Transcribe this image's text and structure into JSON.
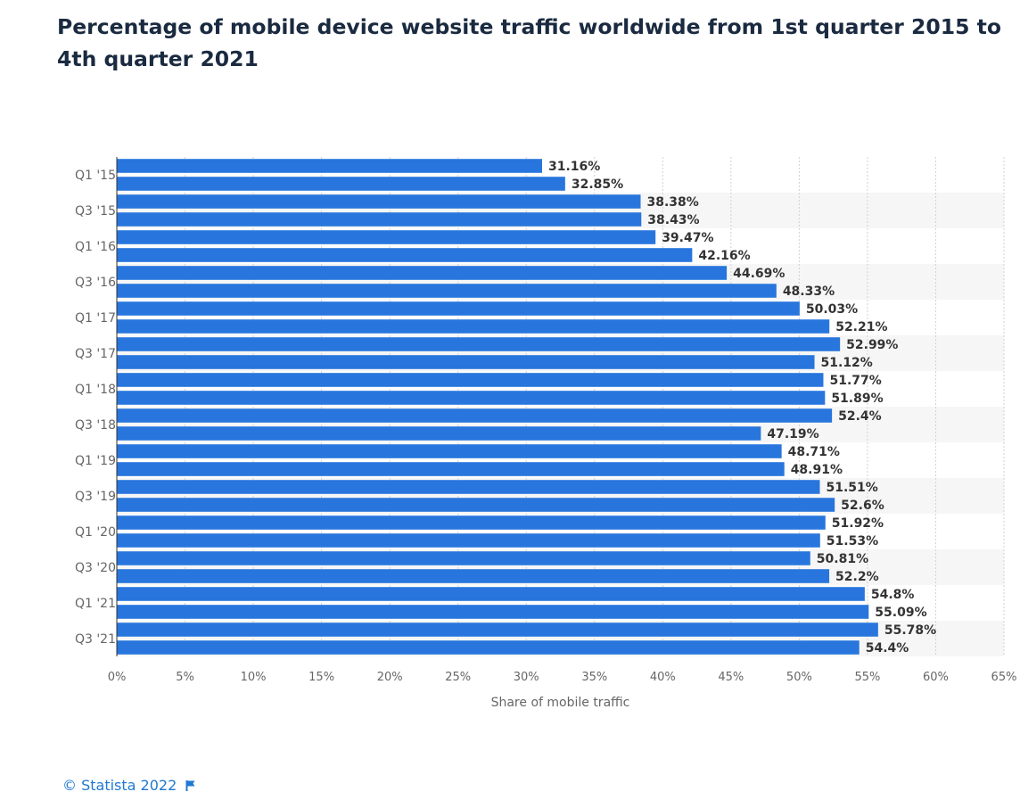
{
  "chart_data": {
    "type": "bar",
    "orientation": "horizontal",
    "title": "Percentage of mobile device website traffic worldwide from 1st quarter 2015 to 4th quarter 2021",
    "xlabel": "Share of mobile traffic",
    "ylabel": "",
    "xlim": [
      0,
      65
    ],
    "x_ticks": [
      "0%",
      "5%",
      "10%",
      "15%",
      "20%",
      "25%",
      "30%",
      "35%",
      "40%",
      "45%",
      "50%",
      "55%",
      "60%",
      "65%"
    ],
    "category_labels": [
      "Q1 '15",
      "Q3 '15",
      "Q1 '16",
      "Q3 '16",
      "Q1 '17",
      "Q3 '17",
      "Q1 '18",
      "Q3 '18",
      "Q1 '19",
      "Q3 '19",
      "Q1 '20",
      "Q3 '20",
      "Q1 '21",
      "Q3 '21"
    ],
    "values": [
      31.16,
      32.85,
      38.38,
      38.43,
      39.47,
      42.16,
      44.69,
      48.33,
      50.03,
      52.21,
      52.99,
      51.12,
      51.77,
      51.89,
      52.4,
      47.19,
      48.71,
      48.91,
      51.51,
      52.6,
      51.92,
      51.53,
      50.81,
      52.2,
      54.8,
      55.09,
      55.78,
      54.4
    ],
    "data_labels": [
      "31.16%",
      "32.85%",
      "38.38%",
      "38.43%",
      "39.47%",
      "42.16%",
      "44.69%",
      "48.33%",
      "50.03%",
      "52.21%",
      "52.99%",
      "51.12%",
      "51.77%",
      "51.89%",
      "52.4%",
      "47.19%",
      "48.71%",
      "48.91%",
      "51.51%",
      "52.6%",
      "51.92%",
      "51.53%",
      "50.81%",
      "52.2%",
      "54.8%",
      "55.09%",
      "55.78%",
      "54.4%"
    ],
    "bar_color": "#2876dd",
    "grid": true
  },
  "footer": {
    "credit": "© Statista 2022"
  },
  "colors": {
    "title": "#1a2a40",
    "axis_text": "#666666",
    "label_text": "#333333",
    "link": "#1f78d1"
  }
}
